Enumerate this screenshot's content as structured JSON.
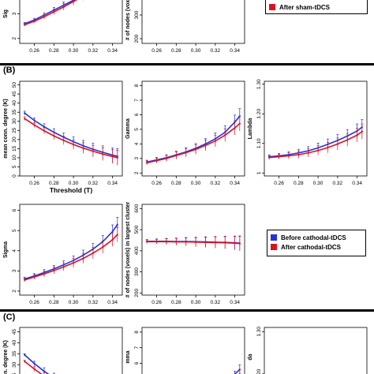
{
  "colors": {
    "before": "#2233dd",
    "after": "#dd1122",
    "separator": "#000000"
  },
  "panel_labels": {
    "B": "(B)",
    "C": "(C)"
  },
  "legends": {
    "top": {
      "after": "After sham-tDCS"
    },
    "b": {
      "before": "Before cathodal-tDCS",
      "after": "After cathodal-tDCS"
    }
  },
  "axis_tick_labels": [
    "0.26",
    "0.28",
    "0.30",
    "0.32",
    "0.34"
  ],
  "chart_data": [
    {
      "id": "top-sigma",
      "type": "line",
      "ylabel": "Sig",
      "x": [
        0.25,
        0.26,
        0.27,
        0.28,
        0.29,
        0.3,
        0.31,
        0.32
      ],
      "series": [
        {
          "name": "",
          "values": [
            2.6,
            2.75,
            2.95,
            3.15,
            3.35,
            3.55,
            3.75,
            4.0
          ]
        },
        {
          "name": "After sham-tDCS",
          "values": [
            2.55,
            2.7,
            2.88,
            3.08,
            3.28,
            3.5,
            3.72,
            3.95
          ]
        }
      ],
      "ylim": [
        1.8,
        4.2
      ],
      "yticks": [
        2,
        3
      ],
      "xlim": [
        0.245,
        0.35
      ],
      "xticks": [
        0.26,
        0.28,
        0.3,
        0.32,
        0.34
      ]
    },
    {
      "id": "top-nodes",
      "type": "line",
      "ylabel": "# of nodes (voxels) i",
      "ylim": [
        180,
        430
      ],
      "yticks": [
        200,
        300,
        400
      ],
      "xlim": [
        0.245,
        0.35
      ],
      "xticks": [
        0.26,
        0.28,
        0.3,
        0.32,
        0.34
      ]
    },
    {
      "id": "b-degree",
      "type": "line",
      "xlabel": "Threshold (T)",
      "ylabel": "mean conn. degree (K)",
      "x": [
        0.25,
        0.26,
        0.27,
        0.28,
        0.29,
        0.3,
        0.31,
        0.32,
        0.33,
        0.34,
        0.345
      ],
      "series": [
        {
          "name": "Before cathodal-tDCS",
          "values": [
            34.5,
            30.5,
            27,
            24,
            21.3,
            18.8,
            16.6,
            14.7,
            13,
            11.5,
            10.8
          ]
        },
        {
          "name": "After cathodal-tDCS",
          "values": [
            31.5,
            28,
            24.8,
            22,
            19.5,
            17.3,
            15.3,
            13.6,
            12,
            10.7,
            10
          ]
        }
      ],
      "ylim": [
        0,
        52
      ],
      "yticks": [
        0,
        5,
        10,
        15,
        20,
        25,
        30,
        35,
        40,
        45,
        50
      ],
      "xlim": [
        0.245,
        0.35
      ],
      "xticks": [
        0.26,
        0.28,
        0.3,
        0.32,
        0.34
      ]
    },
    {
      "id": "b-gamma",
      "type": "line",
      "ylabel": "Gamma",
      "x": [
        0.25,
        0.26,
        0.27,
        0.28,
        0.29,
        0.3,
        0.31,
        0.32,
        0.33,
        0.34,
        0.345
      ],
      "series": [
        {
          "name": "Before cathodal-tDCS",
          "values": [
            2.75,
            2.9,
            3.05,
            3.25,
            3.45,
            3.7,
            4.0,
            4.35,
            4.8,
            5.5,
            5.9
          ]
        },
        {
          "name": "After cathodal-tDCS",
          "values": [
            2.7,
            2.85,
            3.0,
            3.2,
            3.4,
            3.62,
            3.9,
            4.2,
            4.6,
            5.1,
            5.4
          ]
        }
      ],
      "ylim": [
        1.8,
        8.3
      ],
      "yticks": [
        2,
        3,
        4,
        5,
        6,
        7,
        8
      ],
      "xlim": [
        0.245,
        0.35
      ],
      "xticks": [
        0.26,
        0.28,
        0.3,
        0.32,
        0.34
      ]
    },
    {
      "id": "b-lambda",
      "type": "line",
      "ylabel": "Lambda",
      "x": [
        0.25,
        0.26,
        0.27,
        0.28,
        0.29,
        0.3,
        0.31,
        0.32,
        0.33,
        0.34,
        0.345
      ],
      "series": [
        {
          "name": "Before cathodal-tDCS",
          "values": [
            1.055,
            1.058,
            1.062,
            1.068,
            1.075,
            1.085,
            1.097,
            1.11,
            1.125,
            1.142,
            1.155
          ]
        },
        {
          "name": "After cathodal-tDCS",
          "values": [
            1.052,
            1.055,
            1.058,
            1.062,
            1.068,
            1.076,
            1.086,
            1.098,
            1.112,
            1.128,
            1.14
          ]
        }
      ],
      "ylim": [
        0.99,
        1.31
      ],
      "yticks": [
        1.0,
        1.1,
        1.2,
        1.3
      ],
      "xlim": [
        0.245,
        0.35
      ],
      "xticks": [
        0.26,
        0.28,
        0.3,
        0.32,
        0.34
      ]
    },
    {
      "id": "b-sigma",
      "type": "line",
      "ylabel": "Sigma",
      "x": [
        0.25,
        0.26,
        0.27,
        0.28,
        0.29,
        0.3,
        0.31,
        0.32,
        0.33,
        0.34,
        0.345
      ],
      "series": [
        {
          "name": "Before cathodal-tDCS",
          "values": [
            2.6,
            2.75,
            2.92,
            3.1,
            3.3,
            3.52,
            3.78,
            4.08,
            4.45,
            4.95,
            5.3
          ]
        },
        {
          "name": "After cathodal-tDCS",
          "values": [
            2.55,
            2.7,
            2.85,
            3.02,
            3.2,
            3.4,
            3.62,
            3.88,
            4.18,
            4.55,
            4.8
          ]
        }
      ],
      "ylim": [
        1.8,
        6.3
      ],
      "yticks": [
        2,
        3,
        4,
        5,
        6
      ],
      "xlim": [
        0.245,
        0.35
      ],
      "xticks": [
        0.26,
        0.28,
        0.3,
        0.32,
        0.34
      ]
    },
    {
      "id": "b-nodes",
      "type": "line",
      "ylabel": "# of nodes (voxels) in largest cluster",
      "x": [
        0.25,
        0.26,
        0.27,
        0.28,
        0.29,
        0.3,
        0.31,
        0.32,
        0.33,
        0.34,
        0.345
      ],
      "series": [
        {
          "name": "Before cathodal-tDCS",
          "values": [
            445,
            445,
            445,
            444,
            444,
            443,
            442,
            441,
            440,
            438,
            436
          ]
        },
        {
          "name": "After cathodal-tDCS",
          "values": [
            443,
            443,
            443,
            442,
            442,
            441,
            440,
            439,
            438,
            436,
            434
          ]
        }
      ],
      "ylim": [
        190,
        620
      ],
      "yticks": [
        200,
        300,
        400,
        500,
        600
      ],
      "xlim": [
        0.245,
        0.35
      ],
      "xticks": [
        0.26,
        0.28,
        0.3,
        0.32,
        0.34
      ]
    },
    {
      "id": "c-degree",
      "type": "line",
      "ylabel": "n. degree (K)",
      "x": [
        0.25,
        0.26,
        0.27,
        0.28
      ],
      "series": [
        {
          "name": "",
          "values": [
            34.5,
            30.5,
            27,
            24
          ]
        },
        {
          "name": "",
          "values": [
            31.5,
            28,
            24.8,
            22
          ]
        }
      ],
      "ylim": [
        20,
        47
      ],
      "yticks": [
        25,
        30,
        35,
        40,
        45
      ],
      "xlim": [
        0.245,
        0.35
      ]
    },
    {
      "id": "c-gamma",
      "type": "line",
      "ylabel": "mma",
      "x": [
        0.33,
        0.34,
        0.345
      ],
      "series": [
        {
          "name": "",
          "values": [
            4.8,
            5.3,
            5.6
          ]
        },
        {
          "name": "",
          "values": [
            4.6,
            5.0,
            5.3
          ]
        }
      ],
      "ylim": [
        4.5,
        8.3
      ],
      "yticks": [
        5,
        6,
        7,
        8
      ],
      "xlim": [
        0.245,
        0.35
      ]
    },
    {
      "id": "c-lambda",
      "type": "line",
      "ylabel": "da",
      "ylim": [
        1.17,
        1.31
      ],
      "yticks": [
        1.2,
        1.3
      ],
      "xlim": [
        0.245,
        0.35
      ]
    }
  ]
}
